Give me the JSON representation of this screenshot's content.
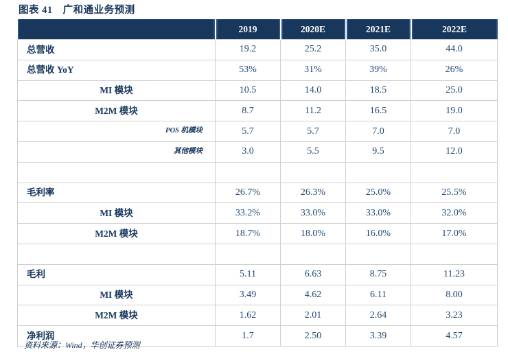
{
  "title": {
    "label": "图表 41",
    "text": "广和通业务预测"
  },
  "source": "资料来源：Wind，华创证券预测",
  "colors": {
    "header_navy": "#17375D",
    "header_inner_line": "#2F5282",
    "label_text": "#17375D",
    "value_text": "#1E4876",
    "grid_line": "#CFCFCF"
  },
  "table": {
    "headers": [
      "",
      "2019",
      "2020E",
      "2021E",
      "2022E"
    ],
    "rows": [
      {
        "label": "总营收",
        "style": "main",
        "values": [
          "19.2",
          "25.2",
          "35.0",
          "44.0"
        ]
      },
      {
        "label": "总营收 YoY",
        "style": "main",
        "values": [
          "53%",
          "31%",
          "39%",
          "26%"
        ]
      },
      {
        "label": "MI 模块",
        "style": "sub",
        "values": [
          "10.5",
          "14.0",
          "18.5",
          "25.0"
        ]
      },
      {
        "label": "M2M 模块",
        "style": "sub",
        "values": [
          "8.7",
          "11.2",
          "16.5",
          "19.0"
        ]
      },
      {
        "label": "POS 机模块",
        "style": "subsub",
        "values": [
          "5.7",
          "5.7",
          "7.0",
          "7.0"
        ]
      },
      {
        "label": "其他模块",
        "style": "subsub",
        "values": [
          "3.0",
          "5.5",
          "9.5",
          "12.0"
        ]
      },
      {
        "label": "",
        "style": "empty",
        "values": [
          "",
          "",
          "",
          ""
        ]
      },
      {
        "label": "毛利率",
        "style": "main",
        "values": [
          "26.7%",
          "26.3%",
          "25.0%",
          "25.5%"
        ]
      },
      {
        "label": "MI 模块",
        "style": "sub",
        "values": [
          "33.2%",
          "33.0%",
          "33.0%",
          "32.0%"
        ]
      },
      {
        "label": "M2M 模块",
        "style": "sub",
        "values": [
          "18.7%",
          "18.0%",
          "16.0%",
          "17.0%"
        ]
      },
      {
        "label": "",
        "style": "empty",
        "values": [
          "",
          "",
          "",
          ""
        ]
      },
      {
        "label": "毛利",
        "style": "main",
        "values": [
          "5.11",
          "6.63",
          "8.75",
          "11.23"
        ]
      },
      {
        "label": "MI 模块",
        "style": "sub",
        "values": [
          "3.49",
          "4.62",
          "6.11",
          "8.00"
        ]
      },
      {
        "label": "M2M 模块",
        "style": "sub",
        "values": [
          "1.62",
          "2.01",
          "2.64",
          "3.23"
        ]
      },
      {
        "label": "净利润",
        "style": "main",
        "values": [
          "1.7",
          "2.50",
          "3.39",
          "4.57"
        ]
      }
    ]
  }
}
